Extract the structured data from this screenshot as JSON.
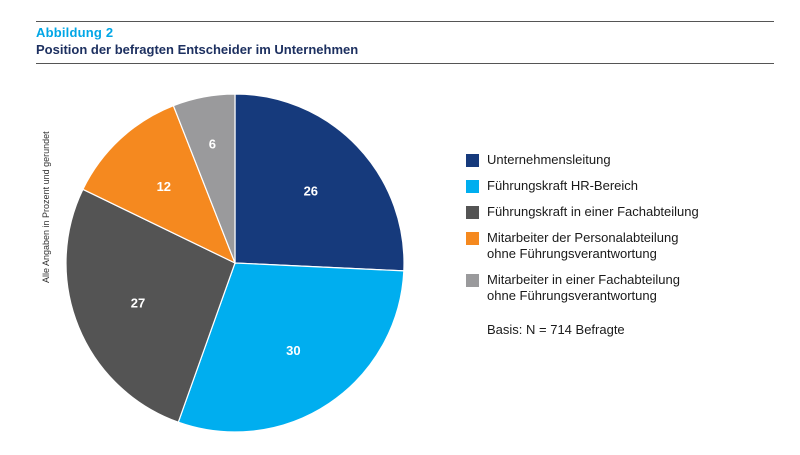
{
  "figure": {
    "label": "Abbildung 2",
    "title": "Position der befragten Entscheider im Unternehmen",
    "side_note": "Alle Angaben in Prozent und gerundet",
    "basis": "Basis: N = 714 Befragte"
  },
  "chart_data": {
    "type": "pie",
    "title": "Position der befragten Entscheider im Unternehmen",
    "unit": "Prozent",
    "legend_position": "right",
    "categories": [
      "Unternehmensleitung",
      "Führungskraft HR-Bereich",
      "Führungskraft in einer Fachabteilung",
      "Mitarbeiter der Personalabteilung\nohne Führungsverantwortung",
      "Mitarbeiter in einer Fachabteilung\nohne Führungsverantwortung"
    ],
    "values": [
      26,
      30,
      27,
      12,
      6
    ],
    "value_labels": [
      "26",
      "30",
      "27",
      "12",
      "6"
    ],
    "colors": [
      "#163a7c",
      "#00aeef",
      "#545454",
      "#f5891f",
      "#9a9a9c"
    ]
  }
}
